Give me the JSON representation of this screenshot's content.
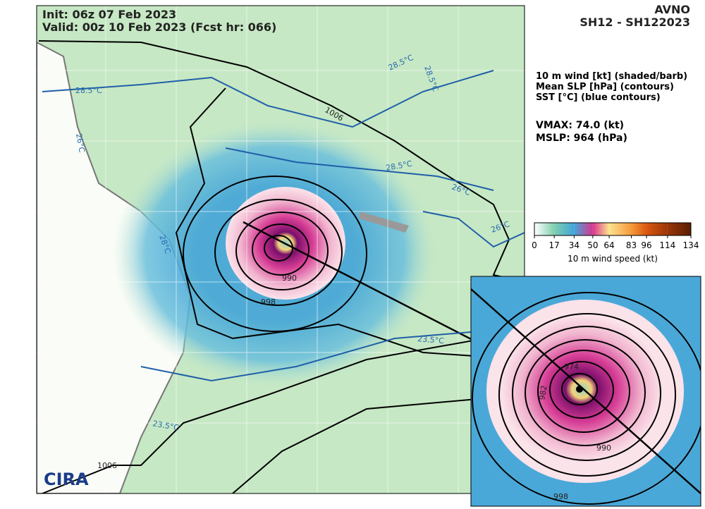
{
  "header": {
    "init": "Init:   06z 07 Feb 2023",
    "valid": "Valid: 00z 10 Feb 2023 (Fcst hr: 066)",
    "model": "AVNO",
    "storm": "SH12 - SH122023"
  },
  "legend": {
    "lines": [
      "10 m wind [kt] (shaded/barb)",
      "Mean SLP [hPa] (contours)",
      "SST [°C] (blue contours)"
    ]
  },
  "stats": {
    "vmax": "VMAX:  74.0 (kt)",
    "mslp": "MSLP:  964 (hPa)"
  },
  "colorbar": {
    "ticks": [
      0,
      17,
      34,
      50,
      64,
      83,
      96,
      114,
      134
    ],
    "label": "10 m wind speed (kt)"
  },
  "map_labels": {
    "slp": [
      "1006",
      "990",
      "998",
      "1006"
    ],
    "sst": [
      "28.5°C",
      "28.5°C",
      "28.5°C",
      "26°C",
      "28.5°C",
      "26°C",
      "26°C",
      "28°C",
      "23.5°C",
      "23.5°C"
    ],
    "logo": "CIRA"
  },
  "inset_labels": [
    "974",
    "982",
    "990",
    "998"
  ]
}
